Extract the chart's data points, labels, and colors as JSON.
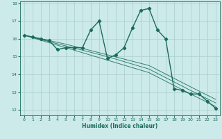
{
  "xlabel": "Humidex (Indice chaleur)",
  "bg_color": "#cceaea",
  "grid_color": "#aacccc",
  "line_color": "#1a6b5a",
  "marker": "D",
  "markersize": 2.2,
  "linewidth": 1.0,
  "xlim": [
    -0.5,
    23.5
  ],
  "ylim": [
    11.7,
    18.1
  ],
  "xticks": [
    0,
    1,
    2,
    3,
    4,
    5,
    6,
    7,
    8,
    9,
    10,
    11,
    12,
    13,
    14,
    15,
    16,
    17,
    18,
    19,
    20,
    21,
    22,
    23
  ],
  "yticks": [
    12,
    13,
    14,
    15,
    16,
    17,
    18
  ],
  "series": [
    [
      0,
      16.2
    ],
    [
      1,
      16.1
    ],
    [
      2,
      16.0
    ],
    [
      3,
      15.9
    ],
    [
      4,
      15.4
    ],
    [
      5,
      15.5
    ],
    [
      6,
      15.5
    ],
    [
      7,
      15.5
    ],
    [
      8,
      16.5
    ],
    [
      9,
      17.0
    ],
    [
      10,
      14.9
    ],
    [
      11,
      15.1
    ],
    [
      12,
      15.5
    ],
    [
      13,
      16.6
    ],
    [
      14,
      17.6
    ],
    [
      15,
      17.7
    ],
    [
      16,
      16.5
    ],
    [
      17,
      16.0
    ],
    [
      18,
      13.2
    ],
    [
      19,
      13.1
    ],
    [
      20,
      12.9
    ],
    [
      21,
      12.9
    ],
    [
      22,
      12.5
    ],
    [
      23,
      12.1
    ]
  ],
  "extra_series": [
    [
      [
        0,
        16.2
      ],
      [
        5,
        15.7
      ],
      [
        10,
        15.1
      ],
      [
        15,
        14.5
      ],
      [
        20,
        13.3
      ],
      [
        23,
        12.6
      ]
    ],
    [
      [
        0,
        16.2
      ],
      [
        5,
        15.6
      ],
      [
        10,
        15.0
      ],
      [
        15,
        14.3
      ],
      [
        20,
        13.1
      ],
      [
        23,
        12.4
      ]
    ],
    [
      [
        0,
        16.2
      ],
      [
        5,
        15.5
      ],
      [
        10,
        14.8
      ],
      [
        15,
        14.1
      ],
      [
        20,
        12.9
      ],
      [
        23,
        12.2
      ]
    ]
  ]
}
